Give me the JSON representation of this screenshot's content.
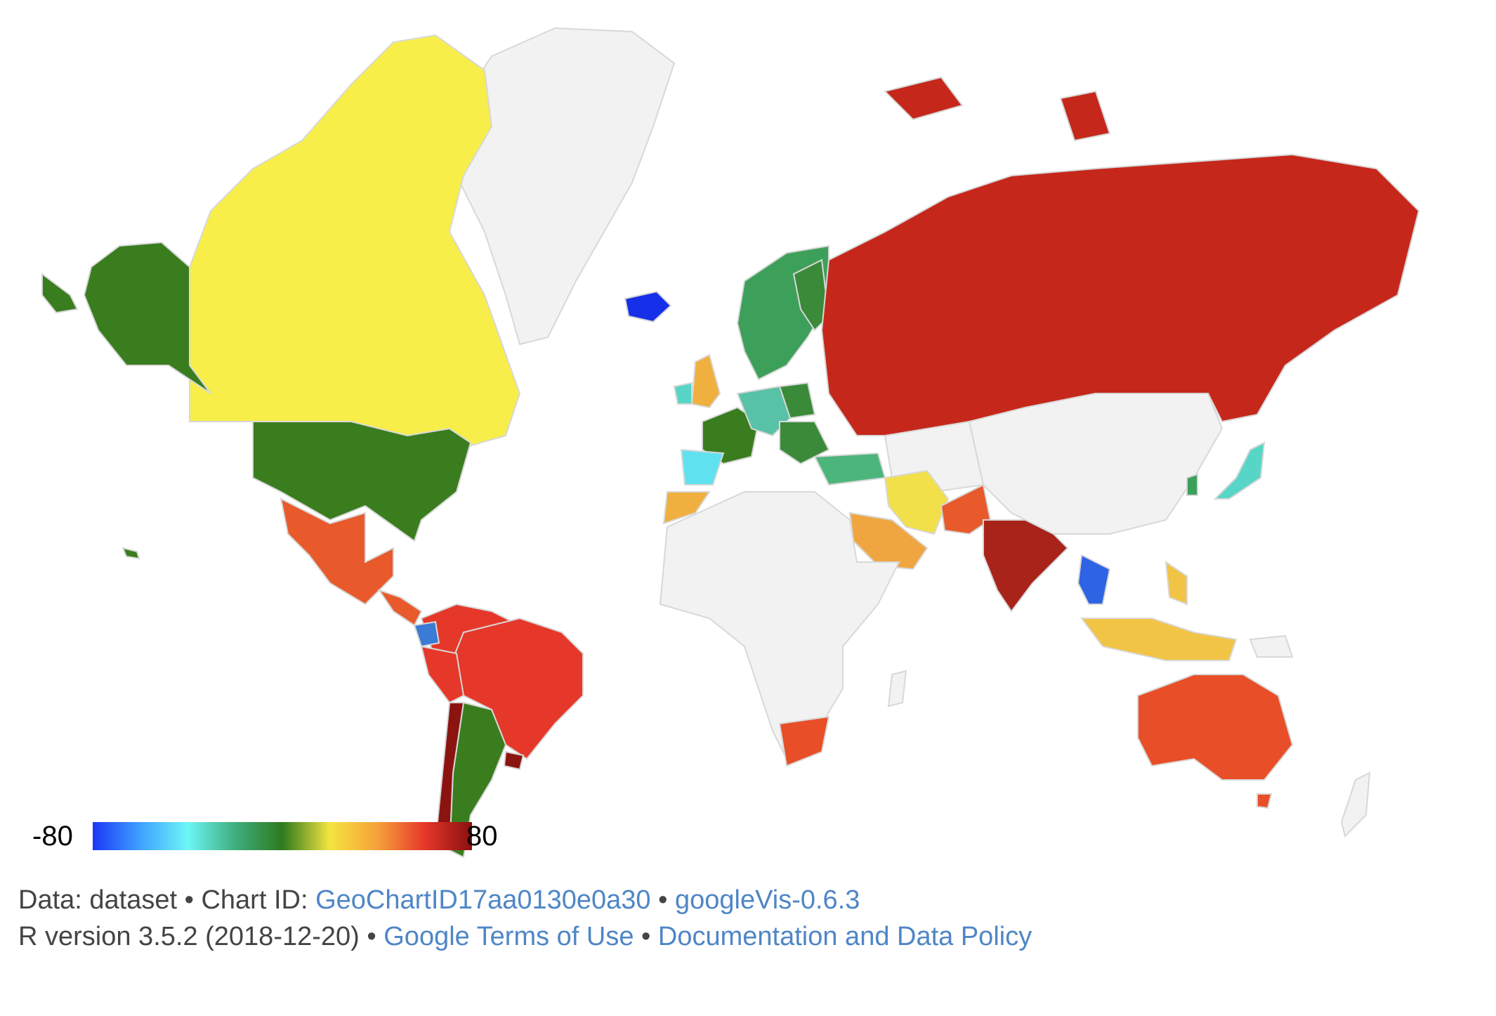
{
  "legend": {
    "min_label": "-80",
    "max_label": "80",
    "gradient_colors": [
      "#1a37f5",
      "#3fa0ff",
      "#6cf6f6",
      "#3fae7e",
      "#2e7a1e",
      "#f4e43f",
      "#f7a23a",
      "#e5382a",
      "#8b0f0f"
    ]
  },
  "colors": {
    "no_data": "#f2f2f2",
    "border": "#d8d8d8",
    "ocean": "#ffffff",
    "link": "#4f86c6"
  },
  "regions": [
    {
      "name": "Canada",
      "color": "#f7ee4a"
    },
    {
      "name": "United States",
      "color": "#3a7d1f"
    },
    {
      "name": "Alaska",
      "color": "#3a7d1f"
    },
    {
      "name": "Greenland",
      "color": "#f2f2f2"
    },
    {
      "name": "Mexico",
      "color": "#e85a2c"
    },
    {
      "name": "Brazil",
      "color": "#e5382a"
    },
    {
      "name": "Argentina",
      "color": "#3a7d1f"
    },
    {
      "name": "Chile",
      "color": "#8b1410"
    },
    {
      "name": "Uruguay",
      "color": "#8b1410"
    },
    {
      "name": "Ecuador",
      "color": "#3a7bd6"
    },
    {
      "name": "Russia",
      "color": "#c5281b"
    },
    {
      "name": "India",
      "color": "#a8231a"
    },
    {
      "name": "Pakistan",
      "color": "#e85a2c"
    },
    {
      "name": "Iran",
      "color": "#f1e04a"
    },
    {
      "name": "Saudi Arabia",
      "color": "#f0a640"
    },
    {
      "name": "Australia",
      "color": "#e84e27"
    },
    {
      "name": "Indonesia",
      "color": "#f2c445"
    },
    {
      "name": "Thailand",
      "color": "#2e64e3"
    },
    {
      "name": "Japan",
      "color": "#57d6c7"
    },
    {
      "name": "South Africa",
      "color": "#e84e27"
    },
    {
      "name": "Iceland",
      "color": "#1530e8"
    },
    {
      "name": "Spain",
      "color": "#60e1f0"
    },
    {
      "name": "Morocco",
      "color": "#f0b040"
    },
    {
      "name": "France",
      "color": "#3a7d1f"
    },
    {
      "name": "United Kingdom",
      "color": "#f0b040"
    },
    {
      "name": "Scandinavia",
      "color": "#3da05a"
    },
    {
      "name": "Turkey",
      "color": "#4cb57c"
    },
    {
      "name": "Germany",
      "color": "#58c2a6"
    },
    {
      "name": "Poland",
      "color": "#3a8a3a"
    }
  ],
  "footer": {
    "data_label": "Data: dataset",
    "bullet": " • ",
    "chart_id_label": "Chart ID: ",
    "chart_id": "GeoChartID17aa0130e0a30",
    "googlevis": "googleVis-0.6.3",
    "r_version": "R version 3.5.2 (2018-12-20)",
    "terms": "Google Terms of Use",
    "docs": "Documentation and Data Policy"
  }
}
